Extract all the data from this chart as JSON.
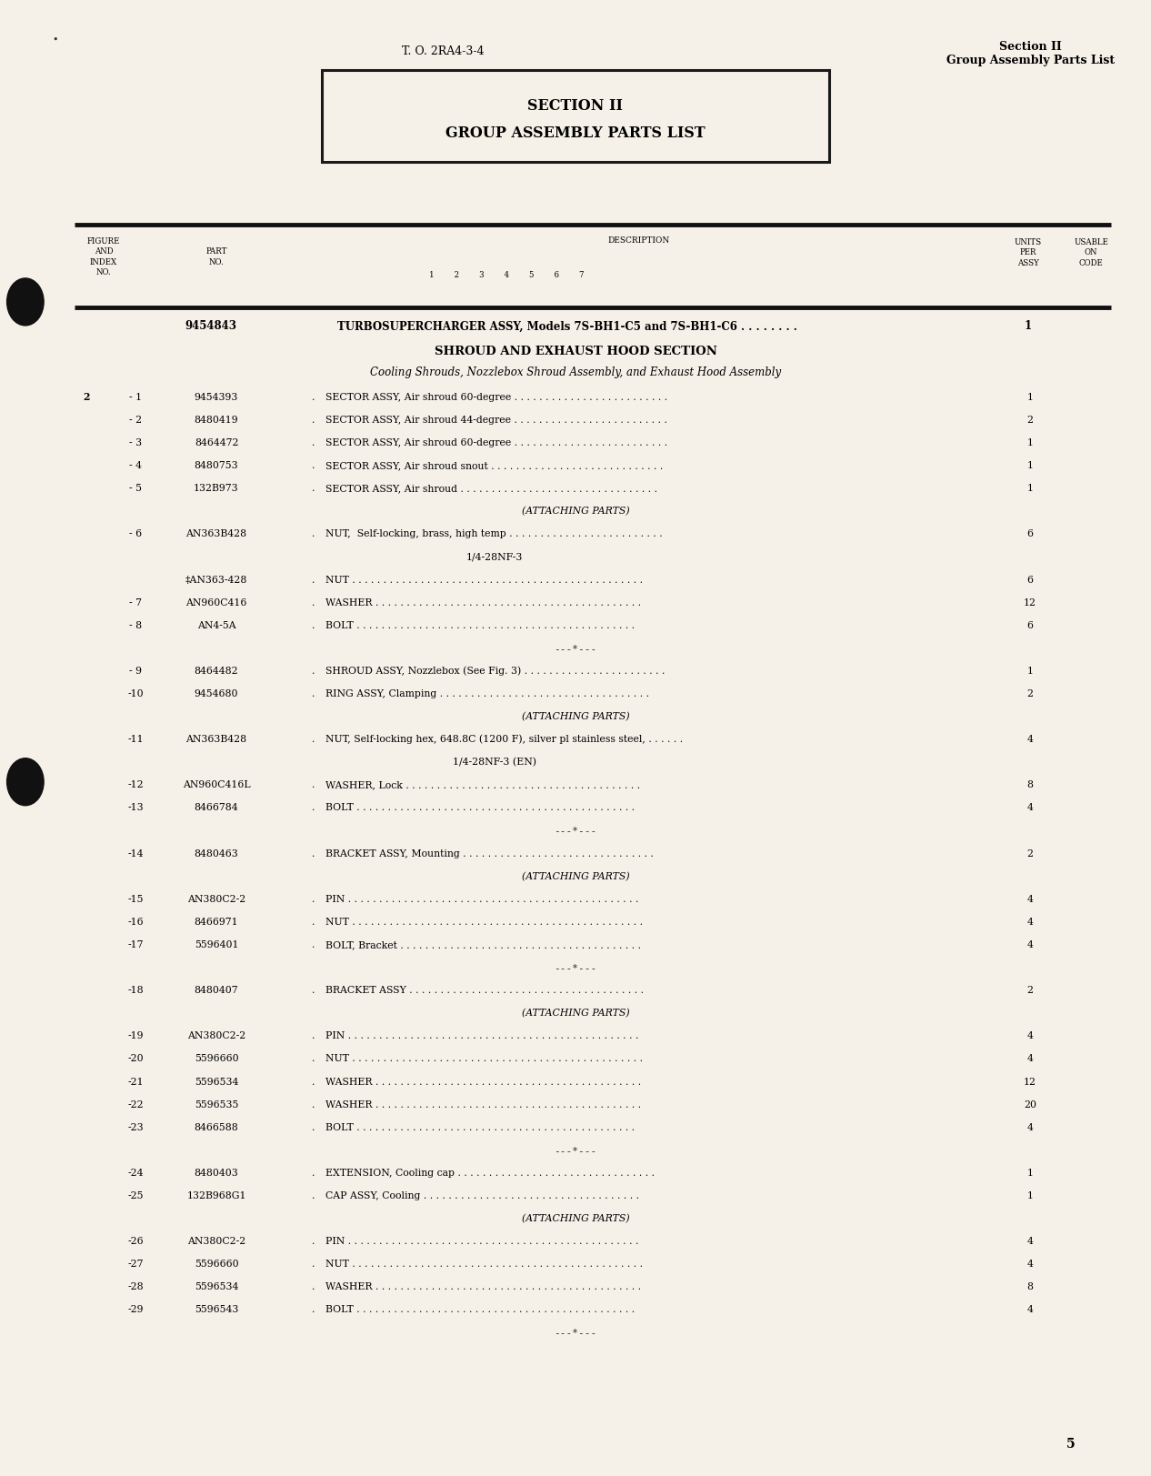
{
  "page_bg": "#f5f0e8",
  "header_left": "T. O. 2RA4-3-4",
  "header_right_line1": "Section II",
  "header_right_line2": "Group Assembly Parts List",
  "section_box_line1": "SECTION II",
  "section_box_line2": "GROUP ASSEMBLY PARTS LIST",
  "top_entry": {
    "part_no": "9454843",
    "description": "TURBOSUPERCHARGER ASSY, Models 7S-BH1-C5 and 7S-BH1-C6 . . . . . . . .",
    "qty": "1"
  },
  "section_title": "SHROUD AND EXHAUST HOOD SECTION",
  "section_subtitle": "Cooling Shrouds, Nozzlebox Shroud Assembly, and Exhaust Hood Assembly",
  "rows": [
    {
      "fig": "2",
      "idx": "- 1",
      "part": "9454393",
      "dot": true,
      "desc": "SECTOR ASSY, Air shroud 60-degree . . . . . . . . . . . . . . . . . . . . . . . . .",
      "qty": "1",
      "type": "normal"
    },
    {
      "fig": "",
      "idx": "- 2",
      "part": "8480419",
      "dot": true,
      "desc": "SECTOR ASSY, Air shroud 44-degree . . . . . . . . . . . . . . . . . . . . . . . . .",
      "qty": "2",
      "type": "normal"
    },
    {
      "fig": "",
      "idx": "- 3",
      "part": "8464472",
      "dot": true,
      "desc": "SECTOR ASSY, Air shroud 60-degree . . . . . . . . . . . . . . . . . . . . . . . . .",
      "qty": "1",
      "type": "normal"
    },
    {
      "fig": "",
      "idx": "- 4",
      "part": "8480753",
      "dot": true,
      "desc": "SECTOR ASSY, Air shroud snout . . . . . . . . . . . . . . . . . . . . . . . . . . . .",
      "qty": "1",
      "type": "normal"
    },
    {
      "fig": "",
      "idx": "- 5",
      "part": "132B973",
      "dot": true,
      "desc": "SECTOR ASSY, Air shroud . . . . . . . . . . . . . . . . . . . . . . . . . . . . . . . .",
      "qty": "1",
      "type": "normal"
    },
    {
      "fig": "",
      "idx": "",
      "part": "",
      "dot": false,
      "desc": "(ATTACHING PARTS)",
      "qty": "",
      "type": "attaching"
    },
    {
      "fig": "",
      "idx": "- 6",
      "part": "AN363B428",
      "dot": true,
      "desc": "NUT,  Self-locking, brass, high temp . . . . . . . . . . . . . . . . . . . . . . . . .",
      "qty": "6",
      "type": "normal"
    },
    {
      "fig": "",
      "idx": "",
      "part": "",
      "dot": false,
      "desc": "1/4-28NF-3",
      "qty": "",
      "type": "continuation"
    },
    {
      "fig": "",
      "idx": "",
      "part": "‡AN363-428",
      "dot": true,
      "desc": "NUT . . . . . . . . . . . . . . . . . . . . . . . . . . . . . . . . . . . . . . . . . . . . . . .",
      "qty": "6",
      "type": "normal"
    },
    {
      "fig": "",
      "idx": "- 7",
      "part": "AN960C416",
      "dot": true,
      "desc": "WASHER . . . . . . . . . . . . . . . . . . . . . . . . . . . . . . . . . . . . . . . . . . .",
      "qty": "12",
      "type": "normal"
    },
    {
      "fig": "",
      "idx": "- 8",
      "part": "AN4-5A",
      "dot": true,
      "desc": "BOLT . . . . . . . . . . . . . . . . . . . . . . . . . . . . . . . . . . . . . . . . . . . . .",
      "qty": "6",
      "type": "normal"
    },
    {
      "fig": "",
      "idx": "",
      "part": "",
      "dot": false,
      "desc": "---*---",
      "qty": "",
      "type": "separator"
    },
    {
      "fig": "",
      "idx": "- 9",
      "part": "8464482",
      "dot": true,
      "desc": "SHROUD ASSY, Nozzlebox (See Fig. 3) . . . . . . . . . . . . . . . . . . . . . . .",
      "qty": "1",
      "type": "normal"
    },
    {
      "fig": "",
      "idx": "-10",
      "part": "9454680",
      "dot": true,
      "desc": "RING ASSY, Clamping . . . . . . . . . . . . . . . . . . . . . . . . . . . . . . . . . .",
      "qty": "2",
      "type": "normal"
    },
    {
      "fig": "",
      "idx": "",
      "part": "",
      "dot": false,
      "desc": "(ATTACHING PARTS)",
      "qty": "",
      "type": "attaching"
    },
    {
      "fig": "",
      "idx": "-11",
      "part": "AN363B428",
      "dot": true,
      "desc": "NUT, Self-locking hex, 648.8C (1200 F), silver pl stainless steel, . . . . . .",
      "qty": "4",
      "type": "normal"
    },
    {
      "fig": "",
      "idx": "",
      "part": "",
      "dot": false,
      "desc": "1/4-28NF-3 (EN)",
      "qty": "",
      "type": "continuation"
    },
    {
      "fig": "",
      "idx": "-12",
      "part": "AN960C416L",
      "dot": true,
      "desc": "WASHER, Lock . . . . . . . . . . . . . . . . . . . . . . . . . . . . . . . . . . . . . .",
      "qty": "8",
      "type": "normal"
    },
    {
      "fig": "",
      "idx": "-13",
      "part": "8466784",
      "dot": true,
      "desc": "BOLT . . . . . . . . . . . . . . . . . . . . . . . . . . . . . . . . . . . . . . . . . . . . .",
      "qty": "4",
      "type": "normal"
    },
    {
      "fig": "",
      "idx": "",
      "part": "",
      "dot": false,
      "desc": "---*---",
      "qty": "",
      "type": "separator"
    },
    {
      "fig": "",
      "idx": "-14",
      "part": "8480463",
      "dot": true,
      "desc": "BRACKET ASSY, Mounting . . . . . . . . . . . . . . . . . . . . . . . . . . . . . . .",
      "qty": "2",
      "type": "normal"
    },
    {
      "fig": "",
      "idx": "",
      "part": "",
      "dot": false,
      "desc": "(ATTACHING PARTS)",
      "qty": "",
      "type": "attaching"
    },
    {
      "fig": "",
      "idx": "-15",
      "part": "AN380C2-2",
      "dot": true,
      "desc": "PIN . . . . . . . . . . . . . . . . . . . . . . . . . . . . . . . . . . . . . . . . . . . . . . .",
      "qty": "4",
      "type": "normal"
    },
    {
      "fig": "",
      "idx": "-16",
      "part": "8466971",
      "dot": true,
      "desc": "NUT . . . . . . . . . . . . . . . . . . . . . . . . . . . . . . . . . . . . . . . . . . . . . . .",
      "qty": "4",
      "type": "normal"
    },
    {
      "fig": "",
      "idx": "-17",
      "part": "5596401",
      "dot": true,
      "desc": "BOLT, Bracket . . . . . . . . . . . . . . . . . . . . . . . . . . . . . . . . . . . . . . .",
      "qty": "4",
      "type": "normal"
    },
    {
      "fig": "",
      "idx": "",
      "part": "",
      "dot": false,
      "desc": "---*---",
      "qty": "",
      "type": "separator"
    },
    {
      "fig": "",
      "idx": "-18",
      "part": "8480407",
      "dot": true,
      "desc": "BRACKET ASSY . . . . . . . . . . . . . . . . . . . . . . . . . . . . . . . . . . . . . .",
      "qty": "2",
      "type": "normal"
    },
    {
      "fig": "",
      "idx": "",
      "part": "",
      "dot": false,
      "desc": "(ATTACHING PARTS)",
      "qty": "",
      "type": "attaching"
    },
    {
      "fig": "",
      "idx": "-19",
      "part": "AN380C2-2",
      "dot": true,
      "desc": "PIN . . . . . . . . . . . . . . . . . . . . . . . . . . . . . . . . . . . . . . . . . . . . . . .",
      "qty": "4",
      "type": "normal"
    },
    {
      "fig": "",
      "idx": "-20",
      "part": "5596660",
      "dot": true,
      "desc": "NUT . . . . . . . . . . . . . . . . . . . . . . . . . . . . . . . . . . . . . . . . . . . . . . .",
      "qty": "4",
      "type": "normal"
    },
    {
      "fig": "",
      "idx": "-21",
      "part": "5596534",
      "dot": true,
      "desc": "WASHER . . . . . . . . . . . . . . . . . . . . . . . . . . . . . . . . . . . . . . . . . . .",
      "qty": "12",
      "type": "normal"
    },
    {
      "fig": "",
      "idx": "-22",
      "part": "5596535",
      "dot": true,
      "desc": "WASHER . . . . . . . . . . . . . . . . . . . . . . . . . . . . . . . . . . . . . . . . . . .",
      "qty": "20",
      "type": "normal"
    },
    {
      "fig": "",
      "idx": "-23",
      "part": "8466588",
      "dot": true,
      "desc": "BOLT . . . . . . . . . . . . . . . . . . . . . . . . . . . . . . . . . . . . . . . . . . . . .",
      "qty": "4",
      "type": "normal"
    },
    {
      "fig": "",
      "idx": "",
      "part": "",
      "dot": false,
      "desc": "---*---",
      "qty": "",
      "type": "separator"
    },
    {
      "fig": "",
      "idx": "-24",
      "part": "8480403",
      "dot": true,
      "desc": "EXTENSION, Cooling cap . . . . . . . . . . . . . . . . . . . . . . . . . . . . . . . .",
      "qty": "1",
      "type": "normal"
    },
    {
      "fig": "",
      "idx": "-25",
      "part": "132B968G1",
      "dot": true,
      "desc": "CAP ASSY, Cooling . . . . . . . . . . . . . . . . . . . . . . . . . . . . . . . . . . .",
      "qty": "1",
      "type": "normal"
    },
    {
      "fig": "",
      "idx": "",
      "part": "",
      "dot": false,
      "desc": "(ATTACHING PARTS)",
      "qty": "",
      "type": "attaching"
    },
    {
      "fig": "",
      "idx": "-26",
      "part": "AN380C2-2",
      "dot": true,
      "desc": "PIN . . . . . . . . . . . . . . . . . . . . . . . . . . . . . . . . . . . . . . . . . . . . . . .",
      "qty": "4",
      "type": "normal"
    },
    {
      "fig": "",
      "idx": "-27",
      "part": "5596660",
      "dot": true,
      "desc": "NUT . . . . . . . . . . . . . . . . . . . . . . . . . . . . . . . . . . . . . . . . . . . . . . .",
      "qty": "4",
      "type": "normal"
    },
    {
      "fig": "",
      "idx": "-28",
      "part": "5596534",
      "dot": true,
      "desc": "WASHER . . . . . . . . . . . . . . . . . . . . . . . . . . . . . . . . . . . . . . . . . . .",
      "qty": "8",
      "type": "normal"
    },
    {
      "fig": "",
      "idx": "-29",
      "part": "5596543",
      "dot": true,
      "desc": "BOLT . . . . . . . . . . . . . . . . . . . . . . . . . . . . . . . . . . . . . . . . . . . . .",
      "qty": "4",
      "type": "normal"
    },
    {
      "fig": "",
      "idx": "",
      "part": "",
      "dot": false,
      "desc": "---*---",
      "qty": "",
      "type": "separator"
    }
  ],
  "page_number": "5"
}
